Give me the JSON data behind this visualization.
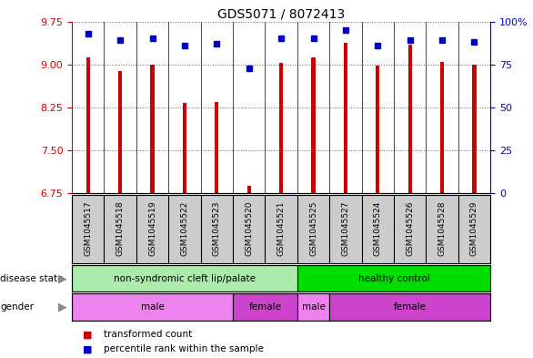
{
  "title": "GDS5071 / 8072413",
  "samples": [
    "GSM1045517",
    "GSM1045518",
    "GSM1045519",
    "GSM1045522",
    "GSM1045523",
    "GSM1045520",
    "GSM1045521",
    "GSM1045525",
    "GSM1045527",
    "GSM1045524",
    "GSM1045526",
    "GSM1045528",
    "GSM1045529"
  ],
  "transformed_count": [
    9.12,
    8.88,
    9.0,
    8.33,
    8.35,
    6.88,
    9.02,
    9.12,
    9.38,
    8.98,
    9.35,
    9.05,
    9.0
  ],
  "percentile_rank": [
    93,
    89,
    90,
    86,
    87,
    73,
    90,
    90,
    95,
    86,
    89,
    89,
    88
  ],
  "ylim_left": [
    6.75,
    9.75
  ],
  "ylim_right": [
    0,
    100
  ],
  "yticks_left": [
    6.75,
    7.5,
    8.25,
    9.0,
    9.75
  ],
  "yticks_right": [
    0,
    25,
    50,
    75,
    100
  ],
  "bar_color": "#cc0000",
  "dot_color": "#0000cc",
  "disease_state_groups": [
    {
      "label": "non-syndromic cleft lip/palate",
      "start": 0,
      "end": 7,
      "color": "#aaeaaa"
    },
    {
      "label": "healthy control",
      "start": 7,
      "end": 13,
      "color": "#00dd00"
    }
  ],
  "gender_groups": [
    {
      "label": "male",
      "start": 0,
      "end": 5,
      "color": "#ee82ee"
    },
    {
      "label": "female",
      "start": 5,
      "end": 7,
      "color": "#cc44cc"
    },
    {
      "label": "male",
      "start": 7,
      "end": 8,
      "color": "#ee82ee"
    },
    {
      "label": "female",
      "start": 8,
      "end": 13,
      "color": "#cc44cc"
    }
  ],
  "bg_color": "#ffffff",
  "label_bg_color": "#cccccc",
  "grid_color": "#666666",
  "tick_color_left": "#cc0000",
  "tick_color_right": "#0000cc",
  "bar_width": 0.12
}
